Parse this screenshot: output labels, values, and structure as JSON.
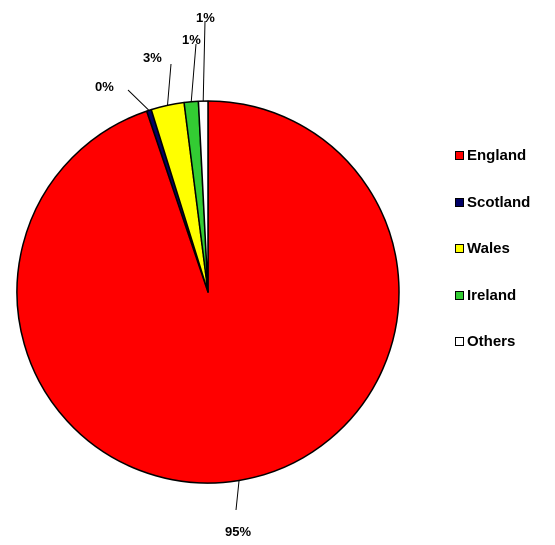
{
  "chart_data": {
    "type": "pie",
    "title": "",
    "categories": [
      "England",
      "Scotland",
      "Wales",
      "Ireland",
      "Others"
    ],
    "values": [
      95,
      0,
      3,
      1,
      1
    ],
    "labels": [
      "95%",
      "0%",
      "3%",
      "1%",
      "1%"
    ],
    "colors": [
      "#ff0000",
      "#000066",
      "#ffff00",
      "#33cc33",
      "#ffffff"
    ],
    "slice_fractions": [
      0.948,
      0.004,
      0.028,
      0.012,
      0.008
    ],
    "legend_placement": "right"
  }
}
